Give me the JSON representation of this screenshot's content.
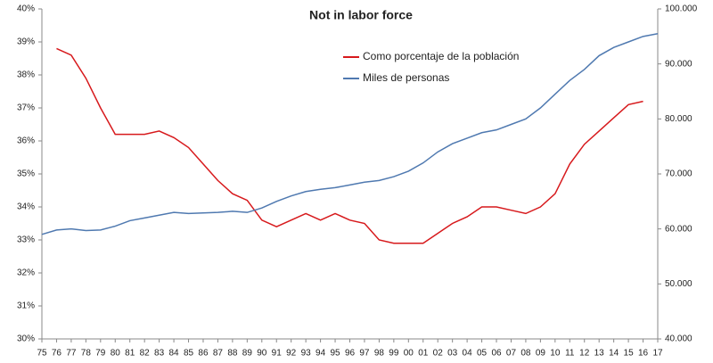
{
  "chart_data": {
    "type": "line",
    "title": "Not in labor force",
    "categories": [
      "75",
      "76",
      "77",
      "78",
      "79",
      "80",
      "81",
      "82",
      "83",
      "84",
      "85",
      "86",
      "87",
      "88",
      "89",
      "90",
      "91",
      "92",
      "93",
      "94",
      "95",
      "96",
      "97",
      "98",
      "99",
      "00",
      "01",
      "02",
      "03",
      "04",
      "05",
      "06",
      "07",
      "08",
      "09",
      "10",
      "11",
      "12",
      "13",
      "14",
      "15",
      "16",
      "17"
    ],
    "series": [
      {
        "name": "Como porcentaje de la población",
        "color": "#d7191c",
        "values": [
          null,
          38.8,
          38.6,
          37.9,
          37.0,
          36.2,
          36.2,
          36.2,
          36.3,
          36.1,
          35.8,
          35.3,
          34.8,
          34.4,
          34.2,
          33.6,
          33.4,
          33.6,
          33.8,
          33.6,
          33.8,
          33.6,
          33.5,
          33.0,
          32.9,
          32.9,
          32.9,
          33.2,
          33.5,
          33.7,
          34.0,
          34.0,
          33.9,
          33.8,
          34.0,
          34.4,
          35.3,
          35.9,
          36.3,
          36.7,
          37.1,
          37.2,
          null
        ]
      },
      {
        "name": "Miles de personas",
        "color": "#4f79b0",
        "axis": "y2",
        "values": [
          59000,
          59800,
          60000,
          59700,
          59800,
          60500,
          61500,
          62000,
          62500,
          63000,
          62800,
          62900,
          63000,
          63200,
          63000,
          63800,
          65000,
          66000,
          66800,
          67200,
          67500,
          68000,
          68500,
          68800,
          69500,
          70500,
          72000,
          74000,
          75500,
          76500,
          77500,
          78000,
          79000,
          80000,
          82000,
          84500,
          87000,
          89000,
          91500,
          93000,
          94000,
          95000,
          95500
        ]
      }
    ],
    "ylim": [
      30,
      40
    ],
    "yticks": [
      {
        "value": 30,
        "label": "30%"
      },
      {
        "value": 31,
        "label": "31%"
      },
      {
        "value": 32,
        "label": "32%"
      },
      {
        "value": 33,
        "label": "33%"
      },
      {
        "value": 34,
        "label": "34%"
      },
      {
        "value": 35,
        "label": "35%"
      },
      {
        "value": 36,
        "label": "36%"
      },
      {
        "value": 37,
        "label": "37%"
      },
      {
        "value": 38,
        "label": "38%"
      },
      {
        "value": 39,
        "label": "39%"
      },
      {
        "value": 40,
        "label": "40%"
      }
    ],
    "y2lim": [
      40000,
      100000
    ],
    "y2ticks": [
      {
        "value": 40000,
        "label": "40.000"
      },
      {
        "value": 50000,
        "label": "50.000"
      },
      {
        "value": 60000,
        "label": "60.000"
      },
      {
        "value": 70000,
        "label": "70.000"
      },
      {
        "value": 80000,
        "label": "80.000"
      },
      {
        "value": 90000,
        "label": "90.000"
      },
      {
        "value": 100000,
        "label": "100.000"
      }
    ],
    "grid": false
  }
}
